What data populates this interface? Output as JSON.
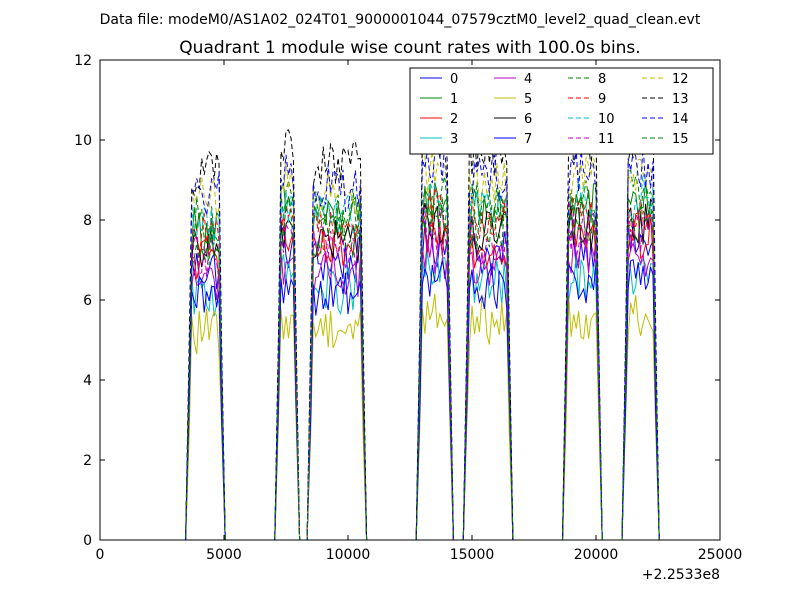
{
  "chart_data": {
    "type": "line",
    "suptitle": "Data file: modeM0/AS1A02_024T01_9000001044_07579cztM0_level2_quad_clean.evt",
    "title": "Quadrant 1 module wise count rates with 100.0s bins.",
    "xlabel": "",
    "ylabel": "",
    "x_offset_label": "+2.2533e8",
    "xlim": [
      0,
      25000
    ],
    "ylim": [
      0,
      12
    ],
    "x_ticks": [
      0,
      5000,
      10000,
      15000,
      20000,
      25000
    ],
    "y_ticks": [
      0,
      2,
      4,
      6,
      8,
      10,
      12
    ],
    "grid": false,
    "legend_position": "top-right",
    "legend_columns": 4,
    "bin_seconds": 100,
    "segments": [
      {
        "start": 3600,
        "end": 4900
      },
      {
        "start": 7200,
        "end": 7900
      },
      {
        "start": 8500,
        "end": 10600
      },
      {
        "start": 12900,
        "end": 14100
      },
      {
        "start": 14800,
        "end": 16500
      },
      {
        "start": 18800,
        "end": 20100
      },
      {
        "start": 21200,
        "end": 22400
      }
    ],
    "series": [
      {
        "name": "0",
        "color": "#0000ff",
        "dash": "solid",
        "level": 6.8
      },
      {
        "name": "1",
        "color": "#008000",
        "dash": "solid",
        "level": 7.8
      },
      {
        "name": "2",
        "color": "#ff0000",
        "dash": "solid",
        "level": 7.0
      },
      {
        "name": "3",
        "color": "#00bfbf",
        "dash": "solid",
        "level": 6.1
      },
      {
        "name": "4",
        "color": "#bf00bf",
        "dash": "solid",
        "level": 6.5
      },
      {
        "name": "5",
        "color": "#bfbf00",
        "dash": "solid",
        "level": 5.2
      },
      {
        "name": "6",
        "color": "#000000",
        "dash": "solid",
        "level": 7.3
      },
      {
        "name": "7",
        "color": "#0000ff",
        "dash": "solid",
        "level": 6.0
      },
      {
        "name": "8",
        "color": "#008000",
        "dash": "dashed",
        "level": 8.0
      },
      {
        "name": "9",
        "color": "#ff0000",
        "dash": "dashed",
        "level": 7.6
      },
      {
        "name": "10",
        "color": "#00bfbf",
        "dash": "dashed",
        "level": 7.9
      },
      {
        "name": "11",
        "color": "#bf00bf",
        "dash": "dashed",
        "level": 7.1
      },
      {
        "name": "12",
        "color": "#bfbf00",
        "dash": "dashed",
        "level": 8.5
      },
      {
        "name": "13",
        "color": "#000000",
        "dash": "dashed",
        "level": 9.2
      },
      {
        "name": "14",
        "color": "#0000ff",
        "dash": "dashed",
        "level": 8.6
      },
      {
        "name": "15",
        "color": "#008000",
        "dash": "dashed",
        "level": 7.4
      }
    ]
  }
}
